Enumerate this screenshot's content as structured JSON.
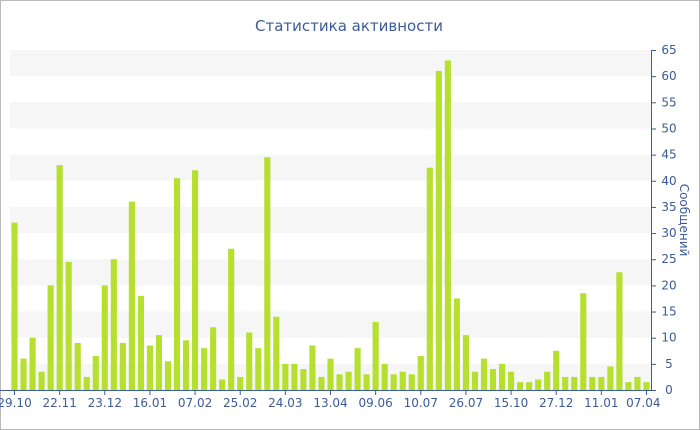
{
  "chart_data": {
    "type": "bar",
    "title": "Статистика активности",
    "ylabel": "Сообщений",
    "xlabel": "",
    "ylim": [
      0,
      65
    ],
    "y_ticks": [
      0,
      5,
      10,
      15,
      20,
      25,
      30,
      35,
      40,
      45,
      50,
      55,
      60,
      65
    ],
    "y_axis_position": "right",
    "x_tick_labels": [
      "29.10",
      "22.11",
      "23.12",
      "16.01",
      "07.02",
      "25.02",
      "24.03",
      "13.04",
      "09.06",
      "10.07",
      "26.07",
      "15.10",
      "27.12",
      "11.01",
      "07.04"
    ],
    "x_tick_indices": [
      0,
      5,
      10,
      15,
      20,
      25,
      30,
      35,
      40,
      45,
      50,
      55,
      60,
      65,
      70
    ],
    "grid": "alternating horizontal bands",
    "legend": "none",
    "bar_color": "#b5e02f",
    "values": [
      32,
      6,
      10,
      3.5,
      20,
      43,
      24.5,
      9,
      2.5,
      6.5,
      20,
      25,
      9,
      36,
      18,
      8.5,
      10.5,
      5.5,
      40.5,
      9.5,
      42,
      8,
      12,
      2,
      27,
      2.5,
      11,
      8,
      44.5,
      14,
      5,
      5,
      4,
      8.5,
      2.5,
      6,
      3,
      3.5,
      8,
      3,
      13,
      5,
      3,
      3.5,
      3,
      6.5,
      42.5,
      61,
      63,
      17.5,
      10.5,
      3.5,
      6,
      4,
      5,
      3.5,
      1.5,
      1.5,
      2,
      3.5,
      7.5,
      2.5,
      2.5,
      18.5,
      2.5,
      2.5,
      4.5,
      22.5,
      1.5,
      2.5,
      1.5
    ]
  }
}
